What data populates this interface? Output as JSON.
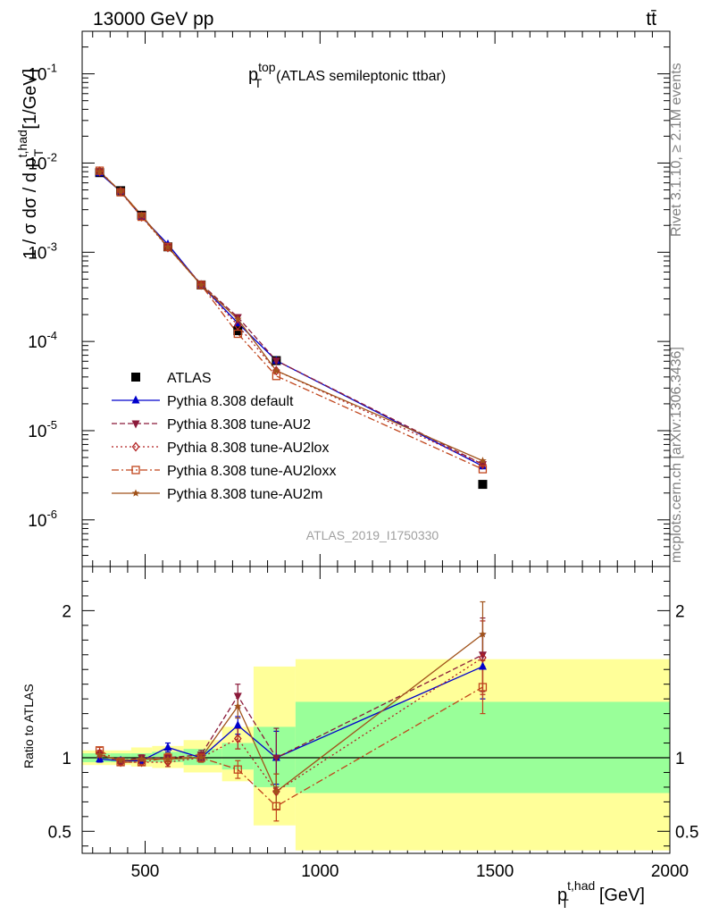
{
  "header": {
    "left": "13000 GeV pp",
    "right": "tt̄"
  },
  "side": {
    "rivet": "Rivet 3.1.10, ≥ 2.1M events",
    "mcplots": "mcplots.cern.ch [arXiv:1306.3436]"
  },
  "analysis_id": "ATLAS_2019_I1750330",
  "plot_title": {
    "main": "p",
    "sup": "top",
    "sub": "T",
    "rest": "(ATLAS semileptonic ttbar)"
  },
  "ylabel_main": {
    "prefix": "1 / σ dσ / d p",
    "sup": "t,had",
    "sub": "T",
    "suffix": "[1/GeV]"
  },
  "ylabel_ratio": "Ratio to ATLAS",
  "xlabel": {
    "main": "p",
    "sup": "t,had",
    "sub": "T",
    "suffix": "[GeV]"
  },
  "colors": {
    "data": "#000000",
    "default": "#0000cc",
    "au2": "#8b1a3a",
    "au2lox": "#b22222",
    "au2loxx": "#c0441b",
    "au2m": "#a0521a",
    "band_inner": "#99ff99",
    "band_outer": "#ffff99"
  },
  "chart_data": [
    {
      "type": "line",
      "panel": "main",
      "yscale": "log",
      "xlim": [
        320,
        2000
      ],
      "ylim": [
        3e-07,
        0.3
      ],
      "x_ticks": [
        500,
        1000,
        1500,
        2000
      ],
      "y_tick_labels": [
        "10^-1",
        "10^-2",
        "10^-3",
        "10^-4",
        "10^-5",
        "10^-6"
      ],
      "bin_edges": [
        320,
        400,
        460,
        520,
        610,
        720,
        810,
        930,
        2000
      ],
      "x": [
        370,
        430,
        490,
        565,
        660,
        765,
        875,
        1465
      ],
      "legend_position": "lower-left",
      "series": [
        {
          "name": "ATLAS",
          "key": "data",
          "marker": "square",
          "values": [
            0.0078,
            0.0049,
            0.0026,
            0.00115,
            0.00043,
            0.000132,
            6.1e-05,
            2.5e-06
          ]
        },
        {
          "name": "Pythia 8.308 default",
          "key": "default",
          "marker": "triangle-up",
          "dash": "",
          "values": [
            0.0077,
            0.0048,
            0.0025,
            0.00123,
            0.00043,
            0.000161,
            6.1e-05,
            4e-06
          ]
        },
        {
          "name": "Pythia 8.308 tune-AU2",
          "key": "au2",
          "marker": "triangle-down",
          "dash": "6,3",
          "values": [
            0.008,
            0.0048,
            0.0026,
            0.00115,
            0.00044,
            0.000187,
            6.1e-05,
            4.2e-06
          ]
        },
        {
          "name": "Pythia 8.308 tune-AU2lox",
          "key": "au2lox",
          "marker": "diamond",
          "dash": "2,3",
          "values": [
            0.0081,
            0.0048,
            0.0025,
            0.00113,
            0.00043,
            0.000151,
            4.7e-05,
            4.2e-06
          ]
        },
        {
          "name": "Pythia 8.308 tune-AU2loxx",
          "key": "au2loxx",
          "marker": "open-square",
          "dash": "8,3,2,3",
          "values": [
            0.0082,
            0.0047,
            0.0025,
            0.00115,
            0.00043,
            0.000122,
            4.1e-05,
            3.7e-06
          ]
        },
        {
          "name": "Pythia 8.308 tune-AU2m",
          "key": "au2m",
          "marker": "star",
          "dash": "",
          "values": [
            0.008,
            0.0048,
            0.0026,
            0.00114,
            0.00043,
            0.000178,
            4.7e-05,
            4.6e-06
          ]
        }
      ]
    },
    {
      "type": "line",
      "panel": "ratio",
      "yscale": "linear",
      "xlim": [
        320,
        2000
      ],
      "ylim": [
        0.35,
        2.3
      ],
      "y_ticks": [
        0.5,
        1,
        2
      ],
      "bin_edges": [
        320,
        400,
        460,
        520,
        610,
        720,
        810,
        930,
        2000
      ],
      "band_inner": {
        "lo": [
          0.97,
          0.97,
          0.97,
          0.97,
          0.95,
          0.92,
          0.8,
          0.76
        ],
        "hi": [
          1.03,
          1.03,
          1.03,
          1.04,
          1.06,
          1.1,
          1.21,
          1.38
        ]
      },
      "band_outer": {
        "lo": [
          0.95,
          0.95,
          0.94,
          0.93,
          0.9,
          0.84,
          0.54,
          0.37
        ],
        "hi": [
          1.05,
          1.05,
          1.07,
          1.08,
          1.12,
          1.21,
          1.62,
          1.67
        ]
      },
      "x": [
        370,
        430,
        490,
        565,
        660,
        765,
        875,
        1465
      ],
      "series": [
        {
          "name": "Pythia 8.308 default",
          "key": "default",
          "values": [
            0.99,
            0.98,
            0.98,
            1.07,
            1.0,
            1.22,
            1.0,
            1.62
          ],
          "errors": [
            0.02,
            0.02,
            0.02,
            0.03,
            0.03,
            0.06,
            0.18,
            0.22
          ]
        },
        {
          "name": "Pythia 8.308 tune-AU2",
          "key": "au2",
          "values": [
            1.02,
            0.98,
            1.0,
            1.0,
            1.02,
            1.42,
            1.0,
            1.7
          ],
          "errors": [
            0.02,
            0.02,
            0.02,
            0.03,
            0.03,
            0.08,
            0.2,
            0.25
          ]
        },
        {
          "name": "Pythia 8.308 tune-AU2lox",
          "key": "au2lox",
          "values": [
            1.03,
            0.97,
            0.97,
            0.97,
            1.0,
            1.13,
            0.77,
            1.68
          ],
          "errors": [
            0.02,
            0.02,
            0.02,
            0.03,
            0.03,
            0.07,
            0.12,
            0.25
          ]
        },
        {
          "name": "Pythia 8.308 tune-AU2loxx",
          "key": "au2loxx",
          "values": [
            1.05,
            0.97,
            0.97,
            1.0,
            1.0,
            0.92,
            0.67,
            1.48
          ],
          "errors": [
            0.02,
            0.02,
            0.02,
            0.03,
            0.03,
            0.06,
            0.1,
            0.18
          ]
        },
        {
          "name": "Pythia 8.308 tune-AU2m",
          "key": "au2m",
          "values": [
            1.02,
            0.98,
            0.99,
            0.99,
            1.0,
            1.35,
            0.77,
            1.84
          ],
          "errors": [
            0.02,
            0.02,
            0.02,
            0.03,
            0.03,
            0.08,
            0.12,
            0.22
          ]
        }
      ]
    }
  ]
}
